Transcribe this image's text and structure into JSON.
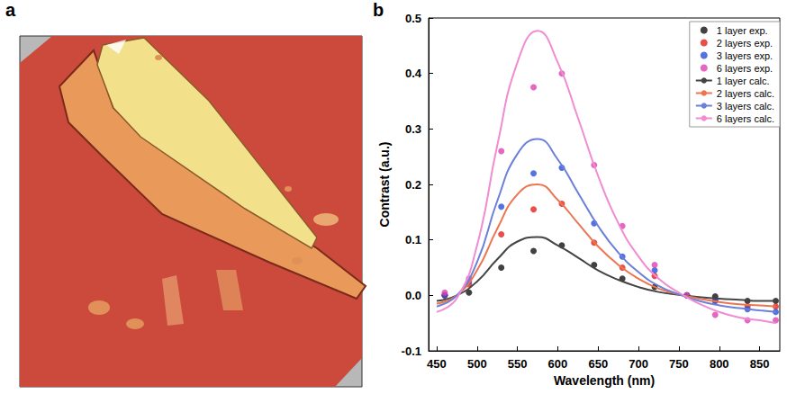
{
  "image_panel": {
    "label": "a"
  },
  "chart_data": {
    "panel_label": "b",
    "type": "line",
    "xlabel": "Wavelength (nm)",
    "ylabel": "Contrast (a.u.)",
    "xlim": [
      440,
      875
    ],
    "xticks": [
      450,
      500,
      550,
      600,
      650,
      700,
      750,
      800,
      850
    ],
    "ylim": [
      -0.1,
      0.5
    ],
    "yticks": [
      -0.1,
      {
        "value": 0,
        "label": "0.0"
      },
      0.1,
      0.2,
      0.3,
      0.4,
      0.5
    ],
    "grid": false,
    "legend": "upper right",
    "series": [
      {
        "name": "1 layer exp.",
        "type": "scatter",
        "marker": "circle",
        "color": "#111111",
        "x": [
          460,
          490,
          530,
          570,
          605,
          645,
          680,
          720,
          760,
          795,
          835,
          870
        ],
        "values": [
          0.0,
          0.005,
          0.05,
          0.08,
          0.09,
          0.055,
          0.03,
          0.015,
          0.0,
          -0.002,
          -0.01,
          -0.01
        ]
      },
      {
        "name": "2 layers exp.",
        "type": "scatter",
        "marker": "circle",
        "color": "#e3221c",
        "x": [
          460,
          490,
          530,
          570,
          605,
          645,
          680,
          720,
          760,
          795,
          835,
          870
        ],
        "values": [
          0.0,
          0.02,
          0.11,
          0.155,
          0.165,
          0.095,
          0.05,
          0.035,
          0.0,
          -0.01,
          -0.02,
          -0.02
        ]
      },
      {
        "name": "3 layers exp.",
        "type": "scatter",
        "marker": "circle",
        "color": "#2a50d8",
        "x": [
          460,
          490,
          530,
          570,
          605,
          645,
          680,
          720,
          760,
          795,
          835,
          870
        ],
        "values": [
          0.0,
          0.025,
          0.16,
          0.22,
          0.23,
          0.13,
          0.07,
          0.045,
          0.0,
          -0.01,
          -0.025,
          -0.03
        ]
      },
      {
        "name": "6 layers exp.",
        "type": "scatter",
        "marker": "circle",
        "color": "#e040b4",
        "x": [
          460,
          490,
          530,
          570,
          605,
          645,
          680,
          720,
          760,
          795,
          835,
          870
        ],
        "values": [
          0.005,
          0.03,
          0.26,
          0.375,
          0.4,
          0.235,
          0.125,
          0.055,
          0.0,
          -0.035,
          -0.045,
          -0.045
        ]
      },
      {
        "name": "1 layer calc.",
        "type": "line",
        "line_style": "solid",
        "color": "#444444",
        "x": [
          450,
          475,
          500,
          525,
          550,
          575,
          600,
          625,
          650,
          675,
          700,
          725,
          750,
          775,
          800,
          825,
          850,
          870
        ],
        "values": [
          -0.01,
          0.0,
          0.025,
          0.065,
          0.097,
          0.105,
          0.09,
          0.068,
          0.045,
          0.028,
          0.015,
          0.006,
          0.001,
          -0.003,
          -0.006,
          -0.008,
          -0.01,
          -0.01
        ]
      },
      {
        "name": "2 layers calc.",
        "type": "line",
        "line_style": "solid",
        "color": "#ec7550",
        "x": [
          450,
          475,
          500,
          525,
          550,
          575,
          600,
          625,
          650,
          675,
          700,
          725,
          750,
          775,
          800,
          825,
          850,
          870
        ],
        "values": [
          -0.015,
          0.0,
          0.045,
          0.12,
          0.182,
          0.2,
          0.172,
          0.13,
          0.088,
          0.055,
          0.03,
          0.012,
          0.002,
          -0.006,
          -0.012,
          -0.016,
          -0.018,
          -0.02
        ]
      },
      {
        "name": "3 layers calc.",
        "type": "line",
        "line_style": "solid",
        "color": "#6b80d8",
        "x": [
          450,
          475,
          500,
          525,
          550,
          575,
          600,
          625,
          650,
          675,
          700,
          725,
          750,
          775,
          800,
          825,
          850,
          870
        ],
        "values": [
          -0.02,
          0.0,
          0.06,
          0.17,
          0.255,
          0.282,
          0.245,
          0.185,
          0.125,
          0.077,
          0.042,
          0.017,
          0.002,
          -0.01,
          -0.018,
          -0.023,
          -0.027,
          -0.03
        ]
      },
      {
        "name": "6 layers calc.",
        "type": "line",
        "line_style": "solid",
        "color": "#f08cd2",
        "x": [
          450,
          475,
          500,
          525,
          550,
          575,
          600,
          625,
          650,
          675,
          700,
          725,
          750,
          775,
          800,
          825,
          850,
          870
        ],
        "values": [
          -0.03,
          -0.005,
          0.09,
          0.27,
          0.42,
          0.477,
          0.42,
          0.32,
          0.215,
          0.13,
          0.07,
          0.03,
          0.005,
          -0.015,
          -0.03,
          -0.04,
          -0.045,
          -0.05
        ]
      }
    ]
  }
}
